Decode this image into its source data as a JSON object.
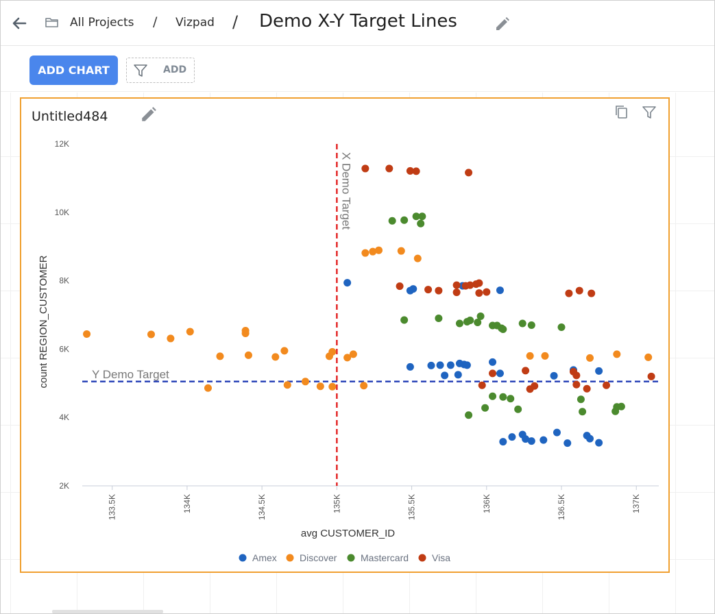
{
  "header": {
    "breadcrumbs": [
      "All Projects",
      "Vizpad"
    ],
    "separator": "/",
    "title": "Demo X-Y Target Lines"
  },
  "toolbar": {
    "add_chart_label": "ADD CHART",
    "filter_add_label": "ADD"
  },
  "card": {
    "title": "Untitled484"
  },
  "colors": {
    "accent": "#4a86ec",
    "card_border": "#f0a030",
    "Amex": "#1f64c0",
    "Discover": "#f28a1e",
    "Mastercard": "#4b8a2e",
    "Visa": "#c03c14",
    "x_target_line": "#e32626",
    "y_target_line": "#2b45b8"
  },
  "chart_data": {
    "type": "scatter",
    "xlabel": "avg CUSTOMER_ID",
    "ylabel": "count REGION_CUSTOMER",
    "xlim": [
      133.3,
      137.15
    ],
    "ylim": [
      2,
      12
    ],
    "x_ticks": [
      133.5,
      134,
      134.5,
      135,
      135.5,
      136,
      136.5,
      137
    ],
    "x_tick_labels": [
      "133.5K",
      "134K",
      "134.5K",
      "135K",
      "135.5K",
      "136K",
      "136.5K",
      "137K"
    ],
    "y_ticks": [
      2,
      4,
      6,
      8,
      10,
      12
    ],
    "y_tick_labels": [
      "2K",
      "4K",
      "6K",
      "8K",
      "10K",
      "12K"
    ],
    "legend_position": "bottom",
    "x_target": {
      "label": "X Demo Target",
      "value": 135
    },
    "y_target": {
      "label": "Y Demo Target",
      "value": 5.05
    },
    "series": [
      {
        "name": "Amex",
        "points": [
          [
            135.07,
            7.94
          ],
          [
            135.49,
            7.71
          ],
          [
            135.51,
            7.76
          ],
          [
            135.84,
            7.85
          ],
          [
            136.09,
            7.72
          ],
          [
            135.49,
            5.48
          ],
          [
            135.63,
            5.52
          ],
          [
            135.69,
            5.53
          ],
          [
            135.76,
            5.53
          ],
          [
            135.72,
            5.23
          ],
          [
            135.81,
            5.25
          ],
          [
            135.82,
            5.58
          ],
          [
            135.85,
            5.55
          ],
          [
            135.87,
            5.53
          ],
          [
            136.04,
            5.62
          ],
          [
            136.09,
            5.29
          ],
          [
            136.45,
            5.22
          ],
          [
            136.58,
            5.39
          ],
          [
            136.75,
            5.36
          ],
          [
            136.11,
            3.29
          ],
          [
            136.17,
            3.43
          ],
          [
            136.24,
            3.5
          ],
          [
            136.26,
            3.37
          ],
          [
            136.3,
            3.31
          ],
          [
            136.38,
            3.34
          ],
          [
            136.47,
            3.56
          ],
          [
            136.54,
            3.25
          ],
          [
            136.67,
            3.47
          ],
          [
            136.69,
            3.38
          ],
          [
            136.75,
            3.26
          ]
        ]
      },
      {
        "name": "Discover",
        "points": [
          [
            133.33,
            6.44
          ],
          [
            133.76,
            6.43
          ],
          [
            133.89,
            6.31
          ],
          [
            134.02,
            6.51
          ],
          [
            134.14,
            4.86
          ],
          [
            134.22,
            5.79
          ],
          [
            134.39,
            6.54
          ],
          [
            134.39,
            6.46
          ],
          [
            134.41,
            5.82
          ],
          [
            134.59,
            5.77
          ],
          [
            134.65,
            5.95
          ],
          [
            134.67,
            4.95
          ],
          [
            134.79,
            5.05
          ],
          [
            134.89,
            4.91
          ],
          [
            134.95,
            5.79
          ],
          [
            134.97,
            5.92
          ],
          [
            134.97,
            4.9
          ],
          [
            135.07,
            5.75
          ],
          [
            135.11,
            5.85
          ],
          [
            135.18,
            4.93
          ],
          [
            135.19,
            8.81
          ],
          [
            135.24,
            8.85
          ],
          [
            135.28,
            8.89
          ],
          [
            135.43,
            8.87
          ],
          [
            135.54,
            8.65
          ],
          [
            136.29,
            5.8
          ],
          [
            136.39,
            5.8
          ],
          [
            136.69,
            5.74
          ],
          [
            136.87,
            5.85
          ],
          [
            137.08,
            5.76
          ]
        ]
      },
      {
        "name": "Mastercard",
        "points": [
          [
            135.37,
            9.75
          ],
          [
            135.45,
            9.77
          ],
          [
            135.53,
            9.88
          ],
          [
            135.56,
            9.67
          ],
          [
            135.57,
            9.88
          ],
          [
            135.45,
            6.85
          ],
          [
            135.68,
            6.9
          ],
          [
            135.82,
            6.75
          ],
          [
            135.87,
            6.8
          ],
          [
            135.89,
            6.84
          ],
          [
            135.94,
            6.78
          ],
          [
            135.96,
            6.96
          ],
          [
            136.04,
            6.69
          ],
          [
            136.07,
            6.69
          ],
          [
            136.1,
            6.61
          ],
          [
            136.11,
            6.58
          ],
          [
            136.24,
            6.75
          ],
          [
            136.3,
            6.7
          ],
          [
            136.5,
            6.64
          ],
          [
            135.88,
            4.07
          ],
          [
            135.99,
            4.28
          ],
          [
            136.04,
            4.62
          ],
          [
            136.11,
            4.6
          ],
          [
            136.16,
            4.55
          ],
          [
            136.21,
            4.24
          ],
          [
            136.63,
            4.53
          ],
          [
            136.64,
            4.17
          ],
          [
            136.86,
            4.18
          ],
          [
            136.87,
            4.31
          ],
          [
            136.9,
            4.32
          ]
        ]
      },
      {
        "name": "Visa",
        "points": [
          [
            135.19,
            11.28
          ],
          [
            135.35,
            11.28
          ],
          [
            135.49,
            11.21
          ],
          [
            135.53,
            11.2
          ],
          [
            135.88,
            11.16
          ],
          [
            135.42,
            7.84
          ],
          [
            135.61,
            7.74
          ],
          [
            135.68,
            7.71
          ],
          [
            135.8,
            7.66
          ],
          [
            135.8,
            7.87
          ],
          [
            135.86,
            7.85
          ],
          [
            135.89,
            7.87
          ],
          [
            135.93,
            7.9
          ],
          [
            135.95,
            7.93
          ],
          [
            135.95,
            7.64
          ],
          [
            136.0,
            7.67
          ],
          [
            136.55,
            7.63
          ],
          [
            136.62,
            7.71
          ],
          [
            136.7,
            7.63
          ],
          [
            135.97,
            4.94
          ],
          [
            136.04,
            5.29
          ],
          [
            136.26,
            5.37
          ],
          [
            136.29,
            4.83
          ],
          [
            136.32,
            4.92
          ],
          [
            136.58,
            5.34
          ],
          [
            136.6,
            5.23
          ],
          [
            136.6,
            4.96
          ],
          [
            136.67,
            4.84
          ],
          [
            136.8,
            4.94
          ],
          [
            137.1,
            5.2
          ]
        ]
      }
    ]
  }
}
